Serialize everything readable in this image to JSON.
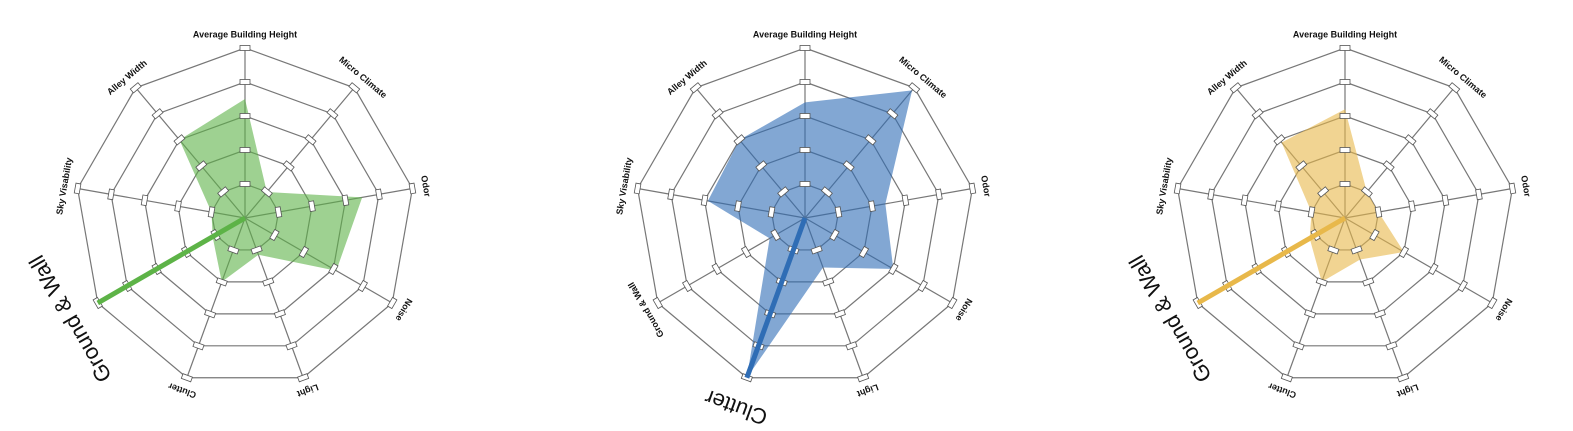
{
  "chart_data": [
    {
      "type": "radar",
      "categories": [
        "Average Building Height",
        "Micro Climate",
        "Odor",
        "Noise",
        "Light",
        "Clutter",
        "Ground & Wall",
        "Sky Visability",
        "Alley Width"
      ],
      "values": [
        3.5,
        1.0,
        3.5,
        3.1,
        1.15,
        2.0,
        1.1,
        1.0,
        3.0
      ],
      "color": "#5db347",
      "highlight": "Ground & Wall",
      "rlim": [
        0,
        5
      ],
      "rticks": [
        1,
        2,
        3,
        4,
        5
      ]
    },
    {
      "type": "radar",
      "categories": [
        "Average Building Height",
        "Micro Climate",
        "Odor",
        "Noise",
        "Light",
        "Clutter",
        "Ground & Wall",
        "Sky Visability",
        "Alley Width"
      ],
      "values": [
        3.4,
        4.9,
        2.4,
        3.0,
        1.55,
        5.0,
        1.2,
        2.9,
        3.0
      ],
      "color": "#2f6db5",
      "highlight": "Clutter",
      "rlim": [
        0,
        5
      ],
      "rticks": [
        1,
        2,
        3,
        4,
        5
      ]
    },
    {
      "type": "radar",
      "categories": [
        "Average Building Height",
        "Micro Climate",
        "Odor",
        "Noise",
        "Light",
        "Clutter",
        "Ground & Wall",
        "Sky Visability",
        "Alley Width"
      ],
      "values": [
        3.2,
        1.0,
        1.0,
        2.0,
        1.3,
        2.0,
        1.2,
        1.0,
        2.9
      ],
      "color": "#e8b84a",
      "highlight": "Ground & Wall",
      "rlim": [
        0,
        5
      ],
      "rticks": [
        1,
        2,
        3,
        4,
        5
      ]
    }
  ]
}
